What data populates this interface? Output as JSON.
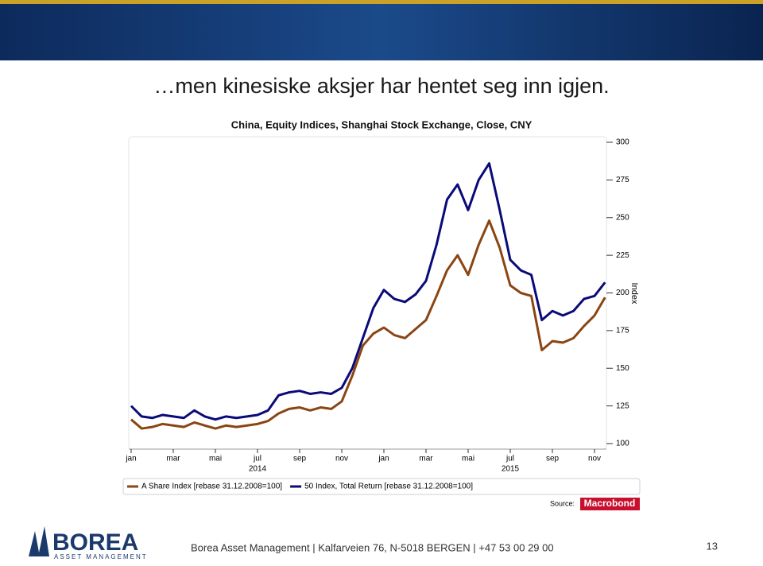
{
  "slide": {
    "heading": "…men kinesiske aksjer har hentet seg inn igjen.",
    "source_label": "Source:",
    "source_brand": "Macrobond",
    "logo_name": "BOREA",
    "logo_sub": "ASSET MANAGEMENT",
    "footer": "Borea Asset Management | Kalfarveien 76, N-5018 BERGEN | +47 53 00 29 00",
    "page_number": "13"
  },
  "chart_data": {
    "type": "line",
    "title": "China, Equity Indices, Shanghai Stock Exchange, Close, CNY",
    "y_label": "Index",
    "categories": [
      "jan",
      null,
      null,
      null,
      "mar",
      null,
      null,
      null,
      "mai",
      null,
      null,
      null,
      "jul",
      null,
      null,
      null,
      "sep",
      null,
      null,
      null,
      "nov",
      null,
      null,
      null,
      "jan",
      null,
      null,
      null,
      "mar",
      null,
      null,
      null,
      "mai",
      null,
      null,
      null,
      "jul",
      null,
      null,
      null,
      "sep",
      null,
      null,
      null,
      "nov",
      null
    ],
    "year_labels": [
      "2014",
      "2015"
    ],
    "ylim": [
      100,
      300
    ],
    "yticks": [
      100,
      125,
      150,
      175,
      200,
      225,
      250,
      275,
      300
    ],
    "series": [
      {
        "name": "A Share Index [rebase 31.12.2008=100]",
        "color": "#8b4513",
        "values": [
          116,
          110,
          111,
          113,
          112,
          111,
          114,
          112,
          110,
          112,
          111,
          112,
          113,
          115,
          120,
          123,
          124,
          122,
          124,
          123,
          128,
          145,
          165,
          173,
          177,
          172,
          170,
          176,
          182,
          198,
          215,
          225,
          212,
          232,
          248,
          230,
          205,
          200,
          198,
          162,
          168,
          167,
          170,
          178,
          185,
          197
        ]
      },
      {
        "name": "50 Index, Total Return [rebase 31.12.2008=100]",
        "color": "#0a0a78",
        "values": [
          125,
          118,
          117,
          119,
          118,
          117,
          122,
          118,
          116,
          118,
          117,
          118,
          119,
          122,
          132,
          134,
          135,
          133,
          134,
          133,
          137,
          150,
          170,
          190,
          202,
          196,
          194,
          199,
          208,
          232,
          262,
          272,
          255,
          275,
          286,
          255,
          222,
          215,
          212,
          182,
          188,
          185,
          188,
          196,
          198,
          207
        ]
      }
    ]
  }
}
